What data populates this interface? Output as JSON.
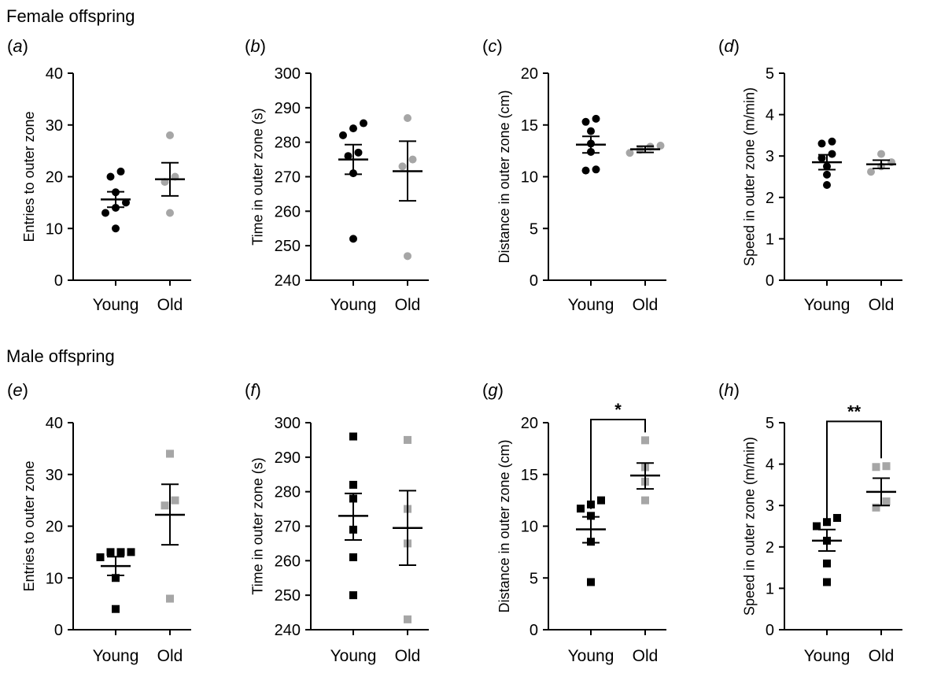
{
  "sections": {
    "female": "Female offspring",
    "male": "Male offspring"
  },
  "colors": {
    "young": "#000000",
    "old": "#a6a6a6",
    "axis": "#000000"
  },
  "chart_data": [
    {
      "id": "a",
      "label": "(a)",
      "type": "scatter",
      "marker": "circle",
      "ylabel": "Entries to outer zone",
      "ylim": [
        0,
        40
      ],
      "yticks": [
        0,
        10,
        20,
        30,
        40
      ],
      "categories": [
        "Young",
        "Old"
      ],
      "series": [
        {
          "name": "Young",
          "points": [
            10,
            13,
            14,
            15,
            17,
            20,
            21
          ],
          "mean": 15.6,
          "sem_low": 14.1,
          "sem_high": 17.1
        },
        {
          "name": "Old",
          "points": [
            13,
            19,
            20,
            28
          ],
          "mean": 19.5,
          "sem_low": 16.3,
          "sem_high": 22.7
        }
      ]
    },
    {
      "id": "b",
      "label": "(b)",
      "type": "scatter",
      "marker": "circle",
      "ylabel": "Time in outer zone (s)",
      "ylim": [
        240,
        300
      ],
      "yticks": [
        240,
        250,
        260,
        270,
        280,
        290,
        300
      ],
      "categories": [
        "Young",
        "Old"
      ],
      "series": [
        {
          "name": "Young",
          "points": [
            252,
            271,
            276,
            277,
            282,
            284,
            285.5
          ],
          "mean": 275,
          "sem_low": 270.7,
          "sem_high": 279.3
        },
        {
          "name": "Old",
          "points": [
            247,
            273,
            275,
            287
          ],
          "mean": 271.6,
          "sem_low": 263,
          "sem_high": 280.3
        }
      ]
    },
    {
      "id": "c",
      "label": "(c)",
      "type": "scatter",
      "marker": "circle",
      "ylabel": "Distance in outer zone (cm)",
      "ylim": [
        0,
        20
      ],
      "yticks": [
        0,
        5,
        10,
        15,
        20
      ],
      "categories": [
        "Young",
        "Old"
      ],
      "series": [
        {
          "name": "Young",
          "points": [
            10.6,
            10.7,
            12.4,
            13.2,
            14.4,
            15.3,
            15.6
          ],
          "mean": 13.1,
          "sem_low": 12.3,
          "sem_high": 13.9
        },
        {
          "name": "Old",
          "points": [
            12.3,
            12.6,
            12.9,
            13.0
          ],
          "mean": 12.65,
          "sem_low": 12.35,
          "sem_high": 12.95
        }
      ]
    },
    {
      "id": "d",
      "label": "(d)",
      "type": "scatter",
      "marker": "circle",
      "ylabel": "Speed in outer zone (m/min)",
      "ylim": [
        0,
        5
      ],
      "yticks": [
        0,
        1,
        2,
        3,
        4,
        5
      ],
      "categories": [
        "Young",
        "Old"
      ],
      "series": [
        {
          "name": "Young",
          "points": [
            2.3,
            2.55,
            2.75,
            2.95,
            3.05,
            3.3,
            3.35
          ],
          "mean": 2.85,
          "sem_low": 2.67,
          "sem_high": 3.03
        },
        {
          "name": "Old",
          "points": [
            2.62,
            2.75,
            2.85,
            3.05
          ],
          "mean": 2.8,
          "sem_low": 2.7,
          "sem_high": 2.9
        }
      ]
    },
    {
      "id": "e",
      "label": "(e)",
      "type": "scatter",
      "marker": "square",
      "ylabel": "Entries to outer zone",
      "ylim": [
        0,
        40
      ],
      "yticks": [
        0,
        10,
        20,
        30,
        40
      ],
      "categories": [
        "Young",
        "Old"
      ],
      "series": [
        {
          "name": "Young",
          "points": [
            4,
            10,
            14,
            15,
            15,
            15
          ],
          "mean": 12.3,
          "sem_low": 10.5,
          "sem_high": 14.1
        },
        {
          "name": "Old",
          "points": [
            6,
            24,
            25,
            34
          ],
          "mean": 22.2,
          "sem_low": 16.4,
          "sem_high": 28.1
        }
      ]
    },
    {
      "id": "f",
      "label": "(f)",
      "type": "scatter",
      "marker": "square",
      "ylabel": "Time in outer zone (s)",
      "ylim": [
        240,
        300
      ],
      "yticks": [
        240,
        250,
        260,
        270,
        280,
        290,
        300
      ],
      "categories": [
        "Young",
        "Old"
      ],
      "series": [
        {
          "name": "Young",
          "points": [
            250,
            261,
            269,
            278,
            282,
            296
          ],
          "mean": 273,
          "sem_low": 266,
          "sem_high": 279.5
        },
        {
          "name": "Old",
          "points": [
            243,
            265,
            275,
            295
          ],
          "mean": 269.5,
          "sem_low": 258.7,
          "sem_high": 280.3
        }
      ]
    },
    {
      "id": "g",
      "label": "(g)",
      "type": "scatter",
      "marker": "square",
      "ylabel": "Distance in outer zone (cm)",
      "ylim": [
        0,
        20
      ],
      "yticks": [
        0,
        5,
        10,
        15,
        20
      ],
      "categories": [
        "Young",
        "Old"
      ],
      "series": [
        {
          "name": "Young",
          "points": [
            4.6,
            8.5,
            11,
            11.7,
            12.1,
            12.5
          ],
          "mean": 9.7,
          "sem_low": 8.4,
          "sem_high": 10.9
        },
        {
          "name": "Old",
          "points": [
            12.5,
            14.3,
            15.7,
            18.3
          ],
          "mean": 14.9,
          "sem_low": 13.6,
          "sem_high": 16.1
        }
      ],
      "significance": {
        "label": "*",
        "bracket_y": 20.3
      }
    },
    {
      "id": "h",
      "label": "(h)",
      "type": "scatter",
      "marker": "square",
      "ylabel": "Speed in outer zone (m/min)",
      "ylim": [
        0,
        5
      ],
      "yticks": [
        0,
        1,
        2,
        3,
        4,
        5
      ],
      "categories": [
        "Young",
        "Old"
      ],
      "series": [
        {
          "name": "Young",
          "points": [
            1.15,
            1.6,
            2.15,
            2.5,
            2.6,
            2.7
          ],
          "mean": 2.15,
          "sem_low": 1.9,
          "sem_high": 2.42
        },
        {
          "name": "Old",
          "points": [
            2.95,
            3.1,
            3.93,
            3.95
          ],
          "mean": 3.33,
          "sem_low": 3.0,
          "sem_high": 3.66
        }
      ],
      "significance": {
        "label": "**",
        "bracket_y": 5.03
      }
    }
  ]
}
